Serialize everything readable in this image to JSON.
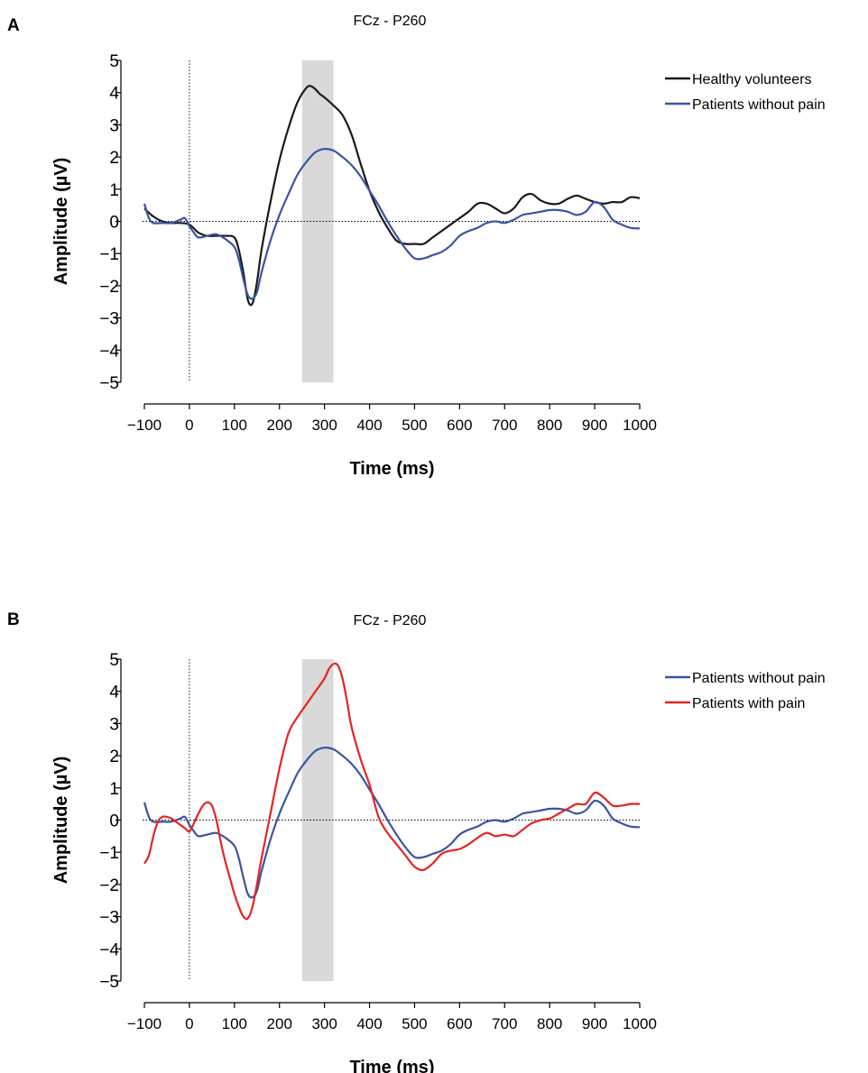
{
  "chart_data": [
    {
      "panel": "A",
      "type": "line",
      "title": "FCz - P260",
      "xlabel": "Time (ms)",
      "ylabel": "Amplitude (µV)",
      "xlim": [
        -100,
        1000
      ],
      "ylim": [
        -5,
        5
      ],
      "xticks": [
        "−100",
        "0",
        "100",
        "200",
        "300",
        "400",
        "500",
        "600",
        "700",
        "800",
        "900",
        "1000"
      ],
      "yticks": [
        "5",
        "4",
        "3",
        "2",
        "1",
        "0",
        "−1",
        "−2",
        "−3",
        "−4",
        "−5"
      ],
      "shaded_interval": [
        250,
        320
      ],
      "legend_position": "top-right",
      "series": [
        {
          "name": "Healthy volunteers",
          "color": "#1a1a1a",
          "x": [
            -100,
            -80,
            -60,
            -40,
            -20,
            0,
            20,
            40,
            60,
            80,
            100,
            110,
            120,
            130,
            140,
            150,
            160,
            180,
            200,
            220,
            240,
            260,
            270,
            280,
            290,
            300,
            320,
            340,
            360,
            380,
            400,
            420,
            440,
            460,
            480,
            500,
            520,
            540,
            560,
            580,
            600,
            620,
            640,
            660,
            680,
            700,
            720,
            740,
            760,
            780,
            800,
            820,
            840,
            860,
            880,
            900,
            920,
            940,
            960,
            980,
            1000
          ],
          "values": [
            0.4,
            0.15,
            0.0,
            -0.05,
            -0.05,
            -0.1,
            -0.35,
            -0.45,
            -0.45,
            -0.45,
            -0.5,
            -0.9,
            -1.6,
            -2.45,
            -2.55,
            -1.9,
            -0.9,
            0.6,
            1.9,
            2.9,
            3.7,
            4.15,
            4.2,
            4.1,
            3.95,
            3.85,
            3.6,
            3.3,
            2.7,
            1.8,
            0.95,
            0.3,
            -0.2,
            -0.6,
            -0.7,
            -0.7,
            -0.7,
            -0.5,
            -0.3,
            -0.1,
            0.1,
            0.3,
            0.55,
            0.55,
            0.4,
            0.25,
            0.4,
            0.75,
            0.85,
            0.65,
            0.55,
            0.55,
            0.7,
            0.8,
            0.7,
            0.6,
            0.55,
            0.6,
            0.6,
            0.75,
            0.72
          ]
        },
        {
          "name": "Patients without pain",
          "color": "#3a54a4",
          "x": [
            -100,
            -90,
            -80,
            -60,
            -40,
            -20,
            -10,
            0,
            10,
            20,
            40,
            60,
            80,
            100,
            110,
            120,
            130,
            140,
            150,
            160,
            180,
            200,
            220,
            240,
            260,
            280,
            300,
            320,
            340,
            360,
            380,
            400,
            420,
            440,
            460,
            480,
            500,
            520,
            540,
            560,
            580,
            600,
            620,
            640,
            660,
            680,
            700,
            720,
            740,
            760,
            780,
            800,
            820,
            840,
            860,
            880,
            900,
            920,
            940,
            960,
            980,
            1000
          ],
          "values": [
            0.55,
            0.1,
            -0.05,
            -0.05,
            -0.05,
            0.05,
            0.1,
            -0.15,
            -0.35,
            -0.5,
            -0.45,
            -0.4,
            -0.55,
            -0.8,
            -1.2,
            -1.8,
            -2.3,
            -2.4,
            -2.2,
            -1.6,
            -0.6,
            0.2,
            0.85,
            1.45,
            1.85,
            2.15,
            2.25,
            2.2,
            2.0,
            1.75,
            1.4,
            0.95,
            0.5,
            0.0,
            -0.45,
            -0.85,
            -1.15,
            -1.15,
            -1.05,
            -0.95,
            -0.75,
            -0.45,
            -0.3,
            -0.2,
            -0.05,
            -0.0,
            -0.05,
            0.05,
            0.2,
            0.25,
            0.3,
            0.35,
            0.35,
            0.3,
            0.2,
            0.3,
            0.6,
            0.45,
            0.05,
            -0.1,
            -0.2,
            -0.22
          ]
        }
      ]
    },
    {
      "panel": "B",
      "type": "line",
      "title": "FCz - P260",
      "xlabel": "Time (ms)",
      "ylabel": "Amplitude (µV)",
      "xlim": [
        -100,
        1000
      ],
      "ylim": [
        -5,
        5
      ],
      "xticks": [
        "−100",
        "0",
        "100",
        "200",
        "300",
        "400",
        "500",
        "600",
        "700",
        "800",
        "900",
        "1000"
      ],
      "yticks": [
        "5",
        "4",
        "3",
        "2",
        "1",
        "0",
        "−1",
        "−2",
        "−3",
        "−4",
        "−5"
      ],
      "shaded_interval": [
        250,
        320
      ],
      "legend_position": "top-right",
      "series": [
        {
          "name": "Patients without pain",
          "color": "#3a54a4",
          "x": [
            -100,
            -90,
            -80,
            -60,
            -40,
            -20,
            -10,
            0,
            10,
            20,
            40,
            60,
            80,
            100,
            110,
            120,
            130,
            140,
            150,
            160,
            180,
            200,
            220,
            240,
            260,
            280,
            300,
            320,
            340,
            360,
            380,
            400,
            420,
            440,
            460,
            480,
            500,
            520,
            540,
            560,
            580,
            600,
            620,
            640,
            660,
            680,
            700,
            720,
            740,
            760,
            780,
            800,
            820,
            840,
            860,
            880,
            900,
            920,
            940,
            960,
            980,
            1000
          ],
          "values": [
            0.55,
            0.1,
            -0.05,
            -0.05,
            -0.05,
            0.05,
            0.1,
            -0.15,
            -0.35,
            -0.5,
            -0.45,
            -0.4,
            -0.55,
            -0.8,
            -1.2,
            -1.8,
            -2.3,
            -2.4,
            -2.2,
            -1.6,
            -0.6,
            0.2,
            0.85,
            1.45,
            1.85,
            2.15,
            2.25,
            2.2,
            2.0,
            1.75,
            1.4,
            0.95,
            0.5,
            0.0,
            -0.45,
            -0.85,
            -1.15,
            -1.15,
            -1.05,
            -0.95,
            -0.75,
            -0.45,
            -0.3,
            -0.2,
            -0.05,
            -0.0,
            -0.05,
            0.05,
            0.2,
            0.25,
            0.3,
            0.35,
            0.35,
            0.3,
            0.2,
            0.3,
            0.6,
            0.45,
            0.05,
            -0.1,
            -0.2,
            -0.22
          ]
        },
        {
          "name": "Patients with pain",
          "color": "#e52421",
          "x": [
            -100,
            -90,
            -80,
            -70,
            -60,
            -50,
            -40,
            -30,
            -20,
            -10,
            0,
            10,
            20,
            30,
            40,
            50,
            60,
            70,
            80,
            90,
            100,
            110,
            120,
            130,
            140,
            150,
            160,
            180,
            200,
            220,
            240,
            260,
            280,
            300,
            310,
            320,
            330,
            340,
            350,
            360,
            380,
            400,
            420,
            440,
            460,
            480,
            500,
            520,
            540,
            560,
            580,
            600,
            620,
            640,
            660,
            680,
            700,
            720,
            740,
            760,
            780,
            800,
            820,
            840,
            860,
            880,
            900,
            920,
            940,
            960,
            980,
            1000
          ],
          "values": [
            -1.35,
            -1.1,
            -0.5,
            -0.05,
            0.1,
            0.1,
            0.05,
            -0.05,
            -0.15,
            -0.25,
            -0.35,
            -0.1,
            0.2,
            0.45,
            0.55,
            0.45,
            0.0,
            -0.7,
            -1.3,
            -1.8,
            -2.3,
            -2.7,
            -3.0,
            -3.05,
            -2.7,
            -2.0,
            -1.2,
            0.2,
            1.6,
            2.7,
            3.2,
            3.6,
            4.0,
            4.4,
            4.7,
            4.85,
            4.8,
            4.4,
            3.7,
            2.9,
            1.9,
            1.1,
            0.1,
            -0.4,
            -0.75,
            -1.1,
            -1.45,
            -1.55,
            -1.35,
            -1.05,
            -0.95,
            -0.9,
            -0.75,
            -0.55,
            -0.4,
            -0.5,
            -0.45,
            -0.5,
            -0.3,
            -0.1,
            0.0,
            0.05,
            0.2,
            0.35,
            0.5,
            0.5,
            0.85,
            0.7,
            0.45,
            0.45,
            0.5,
            0.5
          ]
        }
      ]
    }
  ]
}
